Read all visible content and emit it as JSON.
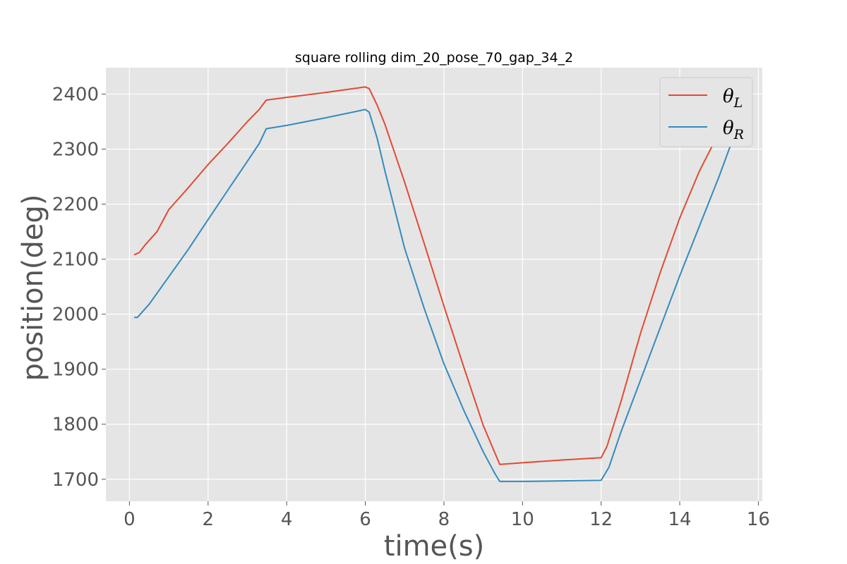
{
  "chart_data": {
    "type": "line",
    "title": "square rolling dim_20_pose_70_gap_34_2",
    "xlabel": "time(s)",
    "ylabel": "position(deg)",
    "xlim": [
      -0.6,
      16.1
    ],
    "ylim": [
      1660,
      2448
    ],
    "xticks": [
      0,
      2,
      4,
      6,
      8,
      10,
      12,
      14,
      16
    ],
    "yticks": [
      1700,
      1800,
      1900,
      2000,
      2100,
      2200,
      2300,
      2400
    ],
    "grid": true,
    "legend_position": "top-right",
    "series": [
      {
        "name": "θL",
        "legend_main": "θ",
        "legend_sub": "L",
        "color": "#E24A33",
        "points": [
          [
            0.12,
            2108
          ],
          [
            0.25,
            2112
          ],
          [
            0.4,
            2126
          ],
          [
            0.7,
            2150
          ],
          [
            1.0,
            2190
          ],
          [
            1.5,
            2230
          ],
          [
            2.0,
            2272
          ],
          [
            2.5,
            2310
          ],
          [
            3.0,
            2350
          ],
          [
            3.3,
            2372
          ],
          [
            3.48,
            2389
          ],
          [
            4.0,
            2394
          ],
          [
            5.0,
            2403
          ],
          [
            6.0,
            2413
          ],
          [
            6.1,
            2410
          ],
          [
            6.3,
            2380
          ],
          [
            6.5,
            2345
          ],
          [
            7.0,
            2240
          ],
          [
            7.5,
            2128
          ],
          [
            8.0,
            2015
          ],
          [
            8.5,
            1905
          ],
          [
            9.0,
            1798
          ],
          [
            9.42,
            1727
          ],
          [
            10.0,
            1730
          ],
          [
            11.0,
            1735
          ],
          [
            12.0,
            1739
          ],
          [
            12.15,
            1760
          ],
          [
            12.5,
            1840
          ],
          [
            13.0,
            1965
          ],
          [
            13.5,
            2075
          ],
          [
            14.0,
            2175
          ],
          [
            14.5,
            2260
          ],
          [
            15.0,
            2330
          ],
          [
            15.35,
            2378
          ]
        ]
      },
      {
        "name": "θR",
        "legend_main": "θ",
        "legend_sub": "R",
        "color": "#348ABD",
        "points": [
          [
            0.12,
            1994
          ],
          [
            0.2,
            1994
          ],
          [
            0.5,
            2018
          ],
          [
            1.0,
            2068
          ],
          [
            1.5,
            2118
          ],
          [
            2.0,
            2172
          ],
          [
            2.5,
            2225
          ],
          [
            3.0,
            2278
          ],
          [
            3.3,
            2310
          ],
          [
            3.48,
            2337
          ],
          [
            4.0,
            2343
          ],
          [
            5.0,
            2357
          ],
          [
            6.0,
            2372
          ],
          [
            6.1,
            2367
          ],
          [
            6.3,
            2320
          ],
          [
            6.5,
            2260
          ],
          [
            7.0,
            2120
          ],
          [
            7.5,
            2010
          ],
          [
            8.0,
            1910
          ],
          [
            8.5,
            1826
          ],
          [
            9.0,
            1750
          ],
          [
            9.3,
            1710
          ],
          [
            9.42,
            1696
          ],
          [
            10.0,
            1696
          ],
          [
            11.0,
            1697
          ],
          [
            12.0,
            1698
          ],
          [
            12.2,
            1722
          ],
          [
            12.5,
            1785
          ],
          [
            13.0,
            1880
          ],
          [
            13.5,
            1975
          ],
          [
            14.0,
            2070
          ],
          [
            14.5,
            2160
          ],
          [
            15.0,
            2250
          ],
          [
            15.35,
            2318
          ]
        ]
      }
    ]
  }
}
